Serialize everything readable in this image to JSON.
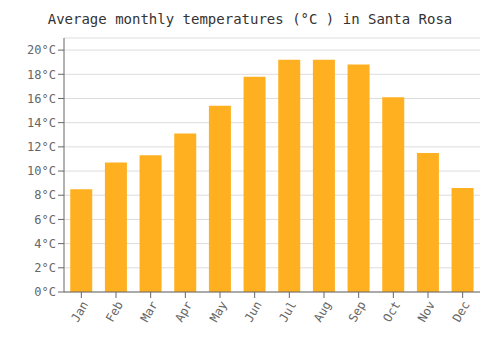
{
  "chart_data": {
    "type": "bar",
    "title": "Average monthly temperatures (°C ) in Santa Rosa",
    "categories": [
      "Jan",
      "Feb",
      "Mar",
      "Apr",
      "May",
      "Jun",
      "Jul",
      "Aug",
      "Sep",
      "Oct",
      "Nov",
      "Dec"
    ],
    "values": [
      8.5,
      10.7,
      11.3,
      13.1,
      15.4,
      17.8,
      19.2,
      19.2,
      18.8,
      16.1,
      11.5,
      8.6
    ],
    "color": "#FFB020",
    "ylim": [
      0,
      21
    ],
    "yticks": [
      {
        "value": 0,
        "label": "0°C"
      },
      {
        "value": 2,
        "label": "2°C"
      },
      {
        "value": 4,
        "label": "4°C"
      },
      {
        "value": 6,
        "label": "6°C"
      },
      {
        "value": 8,
        "label": "8°C"
      },
      {
        "value": 10,
        "label": "10°C"
      },
      {
        "value": 12,
        "label": "12°C"
      },
      {
        "value": 14,
        "label": "14°C"
      },
      {
        "value": 16,
        "label": "16°C"
      },
      {
        "value": 18,
        "label": "18°C"
      },
      {
        "value": 20,
        "label": "20°C"
      }
    ],
    "grid": true
  }
}
